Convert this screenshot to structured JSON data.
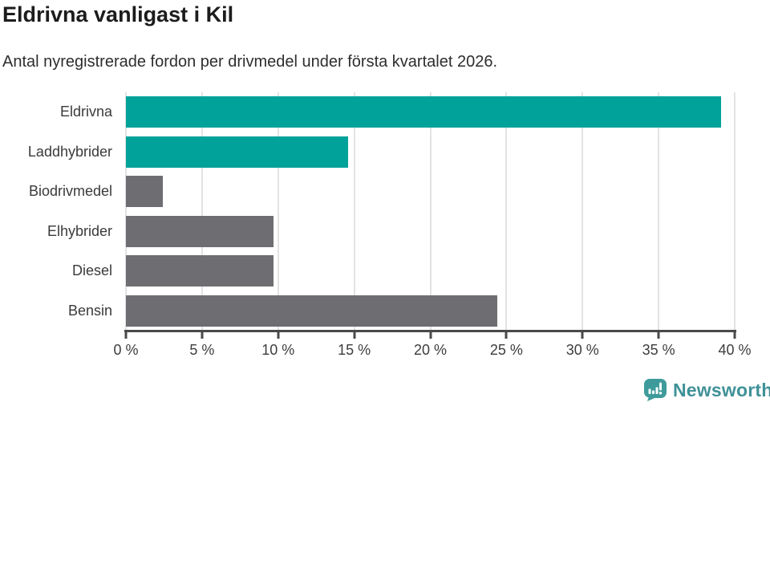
{
  "header": {
    "title": "Eldrivna vanligast i Kil",
    "subtitle": "Antal nyregistrerade fordon per drivmedel under första kvartalet 2026."
  },
  "chart_data": {
    "type": "bar",
    "orientation": "horizontal",
    "title": "Eldrivna vanligast i Kil",
    "subtitle": "Antal nyregistrerade fordon per drivmedel under första kvartalet 2026.",
    "categories": [
      "Eldrivna",
      "Laddhybrider",
      "Biodrivmedel",
      "Elhybrider",
      "Diesel",
      "Bensin"
    ],
    "values": [
      39.1,
      14.6,
      2.4,
      9.7,
      9.7,
      24.4
    ],
    "unit": "%",
    "bar_colors": [
      "#00a29a",
      "#00a29a",
      "#6d6d72",
      "#6d6d72",
      "#6d6d72",
      "#6d6d72"
    ],
    "xlim": [
      0,
      40
    ],
    "x_ticks": [
      0,
      5,
      10,
      15,
      20,
      25,
      30,
      35,
      40
    ],
    "x_tick_labels": [
      "0 %",
      "5 %",
      "10 %",
      "15 %",
      "20 %",
      "25 %",
      "30 %",
      "35 %",
      "40 %"
    ],
    "xlabel": "",
    "ylabel": "",
    "grid": true,
    "legend": false
  },
  "footer": {
    "brand": "Newsworthy"
  },
  "colors": {
    "highlight": "#00a29a",
    "muted": "#6d6d72",
    "gridline": "#e3e3e3",
    "axis": "#4a4a4a",
    "title_text": "#1c1c1c",
    "body_text": "#3a3a3a",
    "brand_teal": "#3f9198"
  }
}
